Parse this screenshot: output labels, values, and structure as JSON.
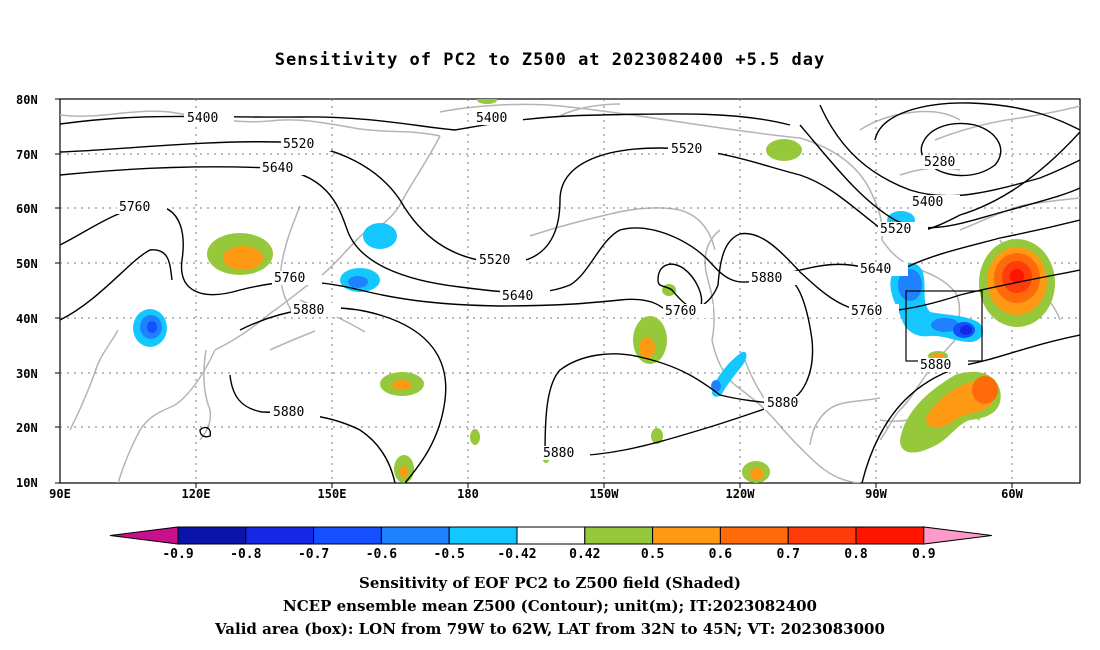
{
  "title": "Sensitivity of PC2 to Z500 at 2023082400 +5.5 day",
  "lat_ticks": [
    "80N",
    "70N",
    "60N",
    "50N",
    "40N",
    "30N",
    "20N",
    "10N"
  ],
  "lon_ticks": [
    "90E",
    "120E",
    "150E",
    "180",
    "150W",
    "120W",
    "90W",
    "60W"
  ],
  "contour_labels": {
    "c5400a": "5400",
    "c5400b": "5400",
    "c5400c": "5400",
    "c5520a": "5520",
    "c5520b": "5520",
    "c5520c": "5520",
    "c5520d": "5520",
    "c5640a": "5640",
    "c5640b": "5640",
    "c5640c": "5640",
    "c5760a": "5760",
    "c5760b": "5760",
    "c5760c": "5760",
    "c5760d": "5760",
    "c5880a": "5880",
    "c5880b": "5880",
    "c5880c": "5880",
    "c5880d": "5880",
    "c5880e": "5880",
    "c5880f": "5880",
    "c5280": "5280"
  },
  "colorbar": {
    "labels": [
      "-0.9",
      "-0.8",
      "-0.7",
      "-0.6",
      "-0.5",
      "-0.42",
      "0.42",
      "0.5",
      "0.6",
      "0.7",
      "0.8",
      "0.9"
    ],
    "colors": [
      "#c8108c",
      "#0a14a8",
      "#1428e6",
      "#1450ff",
      "#1e82ff",
      "#14c8ff",
      "#ffffff",
      "#96c83c",
      "#ff9a14",
      "#ff6a0a",
      "#ff3c0a",
      "#ff1400",
      "#ff9ac8"
    ]
  },
  "captions": {
    "line1": "Sensitivity of EOF PC2 to Z500 field (Shaded)",
    "line2": "NCEP ensemble mean Z500 (Contour); unit(m); IT:2023082400",
    "line3": "Valid area (box): LON from 79W to 62W, LAT from 32N to 45N; VT: 2023083000"
  }
}
